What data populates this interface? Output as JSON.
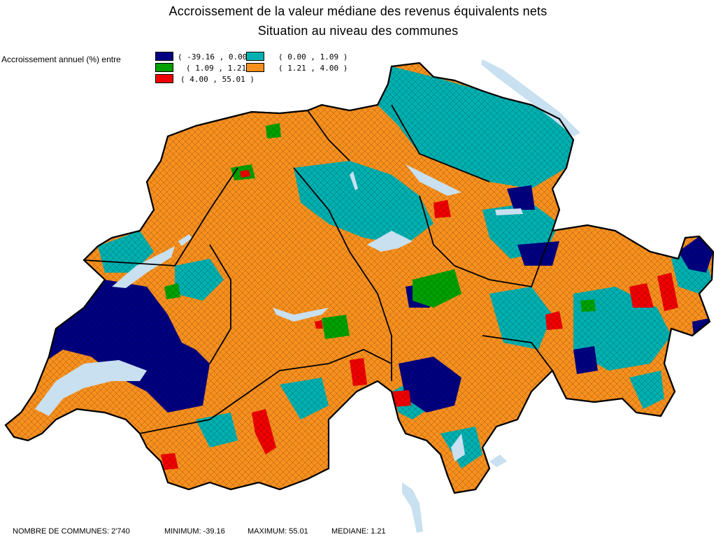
{
  "title_line1": "Accroissement de la valeur médiane des revenus équivalents nets",
  "title_line2": "Situation au niveau des communes",
  "legend": {
    "label": "Accroissement annuel (%) entre",
    "classes": [
      {
        "range": "( -39.16 , 0.00 )",
        "color": "#000080"
      },
      {
        "range": "( 0.00 , 1.09 )",
        "color": "#00B0B0"
      },
      {
        "range": "( 1.09 , 1.21 )",
        "color": "#00A000"
      },
      {
        "range": "( 1.21 , 4.00 )",
        "color": "#F8901E"
      },
      {
        "range": "( 4.00 , 55.01 )",
        "color": "#F00000"
      }
    ]
  },
  "footer": {
    "count": "NOMBRE DE COMMUNES: 2'740",
    "minimum": "MINIMUM: -39.16",
    "maximum": "MAXIMUM: 55.01",
    "median": "MEDIANE: 1.21"
  },
  "lake_color": "#C8E0F0"
}
